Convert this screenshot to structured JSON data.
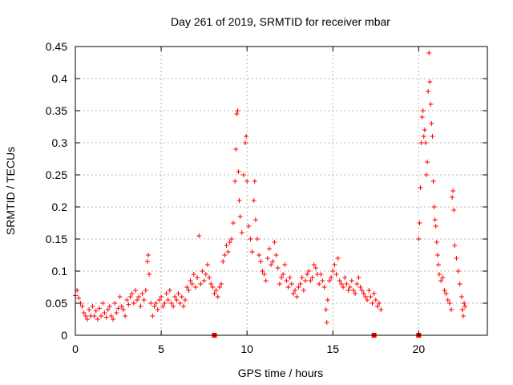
{
  "chart_data": {
    "type": "scatter",
    "title": "Day 261 of 2019, SRMTID for receiver mbar",
    "xlabel": "GPS time / hours",
    "ylabel": "SRMTID / TECUs",
    "xlim": [
      0,
      24
    ],
    "ylim": [
      0,
      0.45
    ],
    "x_ticks": [
      0,
      5,
      10,
      15,
      20
    ],
    "x_tick_labels": [
      "0",
      "5",
      "10",
      "15",
      "20"
    ],
    "y_ticks": [
      0,
      0.05,
      0.1,
      0.15,
      0.2,
      0.25,
      0.3,
      0.35,
      0.4,
      0.45
    ],
    "y_tick_labels": [
      "0",
      "0.05",
      "0.1",
      "0.15",
      "0.2",
      "0.25",
      "0.3",
      "0.35",
      "0.4",
      "0.45"
    ],
    "grid": true,
    "marker": "plus",
    "color": "#ff0000",
    "series": [
      {
        "name": "SRMTID",
        "points": [
          [
            0.0,
            0.062
          ],
          [
            0.1,
            0.07
          ],
          [
            0.2,
            0.058
          ],
          [
            0.3,
            0.05
          ],
          [
            0.4,
            0.045
          ],
          [
            0.5,
            0.035
          ],
          [
            0.6,
            0.03
          ],
          [
            0.7,
            0.025
          ],
          [
            0.8,
            0.04
          ],
          [
            0.9,
            0.03
          ],
          [
            1.0,
            0.045
          ],
          [
            1.1,
            0.03
          ],
          [
            1.2,
            0.038
          ],
          [
            1.3,
            0.025
          ],
          [
            1.4,
            0.042
          ],
          [
            1.5,
            0.03
          ],
          [
            1.6,
            0.05
          ],
          [
            1.7,
            0.035
          ],
          [
            1.8,
            0.028
          ],
          [
            1.9,
            0.04
          ],
          [
            2.0,
            0.045
          ],
          [
            2.1,
            0.03
          ],
          [
            2.2,
            0.025
          ],
          [
            2.3,
            0.05
          ],
          [
            2.4,
            0.035
          ],
          [
            2.5,
            0.042
          ],
          [
            2.6,
            0.06
          ],
          [
            2.7,
            0.045
          ],
          [
            2.8,
            0.04
          ],
          [
            2.9,
            0.03
          ],
          [
            3.0,
            0.055
          ],
          [
            3.1,
            0.048
          ],
          [
            3.2,
            0.06
          ],
          [
            3.3,
            0.065
          ],
          [
            3.4,
            0.05
          ],
          [
            3.5,
            0.07
          ],
          [
            3.6,
            0.055
          ],
          [
            3.7,
            0.06
          ],
          [
            3.8,
            0.045
          ],
          [
            3.9,
            0.065
          ],
          [
            4.0,
            0.055
          ],
          [
            4.1,
            0.07
          ],
          [
            4.2,
            0.115
          ],
          [
            4.25,
            0.125
          ],
          [
            4.3,
            0.095
          ],
          [
            4.4,
            0.05
          ],
          [
            4.5,
            0.03
          ],
          [
            4.6,
            0.045
          ],
          [
            4.7,
            0.05
          ],
          [
            4.8,
            0.04
          ],
          [
            4.9,
            0.055
          ],
          [
            5.0,
            0.06
          ],
          [
            5.1,
            0.045
          ],
          [
            5.2,
            0.05
          ],
          [
            5.3,
            0.065
          ],
          [
            5.4,
            0.055
          ],
          [
            5.5,
            0.07
          ],
          [
            5.6,
            0.05
          ],
          [
            5.7,
            0.045
          ],
          [
            5.8,
            0.06
          ],
          [
            5.9,
            0.055
          ],
          [
            6.0,
            0.065
          ],
          [
            6.1,
            0.05
          ],
          [
            6.2,
            0.06
          ],
          [
            6.3,
            0.045
          ],
          [
            6.4,
            0.055
          ],
          [
            6.5,
            0.075
          ],
          [
            6.6,
            0.07
          ],
          [
            6.7,
            0.085
          ],
          [
            6.8,
            0.08
          ],
          [
            6.9,
            0.095
          ],
          [
            7.0,
            0.075
          ],
          [
            7.1,
            0.09
          ],
          [
            7.2,
            0.155
          ],
          [
            7.3,
            0.08
          ],
          [
            7.4,
            0.1
          ],
          [
            7.5,
            0.085
          ],
          [
            7.6,
            0.095
          ],
          [
            7.7,
            0.11
          ],
          [
            7.8,
            0.09
          ],
          [
            7.9,
            0.08
          ],
          [
            8.0,
            0.075
          ],
          [
            8.1,
            0.065
          ],
          [
            8.2,
            0.07
          ],
          [
            8.3,
            0.06
          ],
          [
            8.4,
            0.075
          ],
          [
            8.5,
            0.08
          ],
          [
            8.6,
            0.115
          ],
          [
            8.7,
            0.125
          ],
          [
            8.8,
            0.14
          ],
          [
            8.9,
            0.13
          ],
          [
            9.0,
            0.145
          ],
          [
            9.1,
            0.15
          ],
          [
            9.2,
            0.175
          ],
          [
            9.3,
            0.24
          ],
          [
            9.35,
            0.29
          ],
          [
            9.4,
            0.345
          ],
          [
            9.45,
            0.35
          ],
          [
            9.5,
            0.255
          ],
          [
            9.55,
            0.21
          ],
          [
            9.6,
            0.185
          ],
          [
            9.7,
            0.16
          ],
          [
            9.8,
            0.25
          ],
          [
            9.9,
            0.3
          ],
          [
            9.95,
            0.31
          ],
          [
            10.0,
            0.24
          ],
          [
            10.1,
            0.17
          ],
          [
            10.2,
            0.15
          ],
          [
            10.3,
            0.13
          ],
          [
            10.4,
            0.21
          ],
          [
            10.45,
            0.24
          ],
          [
            10.5,
            0.18
          ],
          [
            10.6,
            0.15
          ],
          [
            10.7,
            0.125
          ],
          [
            10.8,
            0.115
          ],
          [
            10.9,
            0.1
          ],
          [
            11.0,
            0.095
          ],
          [
            11.1,
            0.085
          ],
          [
            11.2,
            0.12
          ],
          [
            11.3,
            0.135
          ],
          [
            11.4,
            0.11
          ],
          [
            11.5,
            0.115
          ],
          [
            11.6,
            0.145
          ],
          [
            11.7,
            0.125
          ],
          [
            11.8,
            0.105
          ],
          [
            11.9,
            0.08
          ],
          [
            12.0,
            0.09
          ],
          [
            12.1,
            0.095
          ],
          [
            12.2,
            0.11
          ],
          [
            12.3,
            0.085
          ],
          [
            12.4,
            0.075
          ],
          [
            12.5,
            0.09
          ],
          [
            12.6,
            0.08
          ],
          [
            12.7,
            0.065
          ],
          [
            12.8,
            0.07
          ],
          [
            12.9,
            0.06
          ],
          [
            13.0,
            0.075
          ],
          [
            13.1,
            0.08
          ],
          [
            13.2,
            0.09
          ],
          [
            13.3,
            0.07
          ],
          [
            13.4,
            0.085
          ],
          [
            13.5,
            0.095
          ],
          [
            13.6,
            0.1
          ],
          [
            13.7,
            0.085
          ],
          [
            13.8,
            0.09
          ],
          [
            13.9,
            0.11
          ],
          [
            14.0,
            0.105
          ],
          [
            14.1,
            0.095
          ],
          [
            14.2,
            0.08
          ],
          [
            14.3,
            0.095
          ],
          [
            14.4,
            0.085
          ],
          [
            14.5,
            0.075
          ],
          [
            14.6,
            0.04
          ],
          [
            14.65,
            0.02
          ],
          [
            14.7,
            0.055
          ],
          [
            14.8,
            0.085
          ],
          [
            14.9,
            0.09
          ],
          [
            15.0,
            0.1
          ],
          [
            15.1,
            0.11
          ],
          [
            15.2,
            0.095
          ],
          [
            15.3,
            0.12
          ],
          [
            15.4,
            0.085
          ],
          [
            15.5,
            0.08
          ],
          [
            15.6,
            0.075
          ],
          [
            15.7,
            0.09
          ],
          [
            15.8,
            0.08
          ],
          [
            15.9,
            0.07
          ],
          [
            16.0,
            0.075
          ],
          [
            16.1,
            0.085
          ],
          [
            16.2,
            0.07
          ],
          [
            16.3,
            0.065
          ],
          [
            16.4,
            0.08
          ],
          [
            16.5,
            0.09
          ],
          [
            16.6,
            0.075
          ],
          [
            16.7,
            0.07
          ],
          [
            16.8,
            0.065
          ],
          [
            16.9,
            0.06
          ],
          [
            17.0,
            0.055
          ],
          [
            17.1,
            0.07
          ],
          [
            17.2,
            0.06
          ],
          [
            17.3,
            0.05
          ],
          [
            17.4,
            0.065
          ],
          [
            17.5,
            0.055
          ],
          [
            17.6,
            0.045
          ],
          [
            17.7,
            0.05
          ],
          [
            17.8,
            0.04
          ],
          [
            20.0,
            0.15
          ],
          [
            20.05,
            0.175
          ],
          [
            20.1,
            0.23
          ],
          [
            20.15,
            0.3
          ],
          [
            20.2,
            0.34
          ],
          [
            20.25,
            0.35
          ],
          [
            20.3,
            0.31
          ],
          [
            20.35,
            0.32
          ],
          [
            20.4,
            0.3
          ],
          [
            20.45,
            0.25
          ],
          [
            20.5,
            0.27
          ],
          [
            20.55,
            0.38
          ],
          [
            20.6,
            0.44
          ],
          [
            20.65,
            0.395
          ],
          [
            20.7,
            0.36
          ],
          [
            20.75,
            0.33
          ],
          [
            20.8,
            0.31
          ],
          [
            20.85,
            0.24
          ],
          [
            20.9,
            0.2
          ],
          [
            20.95,
            0.18
          ],
          [
            21.0,
            0.17
          ],
          [
            21.05,
            0.145
          ],
          [
            21.1,
            0.125
          ],
          [
            21.15,
            0.11
          ],
          [
            21.2,
            0.095
          ],
          [
            21.3,
            0.085
          ],
          [
            21.4,
            0.09
          ],
          [
            21.5,
            0.07
          ],
          [
            21.6,
            0.065
          ],
          [
            21.7,
            0.055
          ],
          [
            21.8,
            0.05
          ],
          [
            21.9,
            0.04
          ],
          [
            21.95,
            0.215
          ],
          [
            22.0,
            0.225
          ],
          [
            22.05,
            0.195
          ],
          [
            22.1,
            0.14
          ],
          [
            22.2,
            0.12
          ],
          [
            22.3,
            0.1
          ],
          [
            22.4,
            0.08
          ],
          [
            22.5,
            0.06
          ],
          [
            22.55,
            0.04
          ],
          [
            22.6,
            0.03
          ],
          [
            22.65,
            0.05
          ],
          [
            22.7,
            0.045
          ]
        ]
      }
    ],
    "zero_markers_x": [
      8.1,
      17.4,
      20.0
    ]
  }
}
